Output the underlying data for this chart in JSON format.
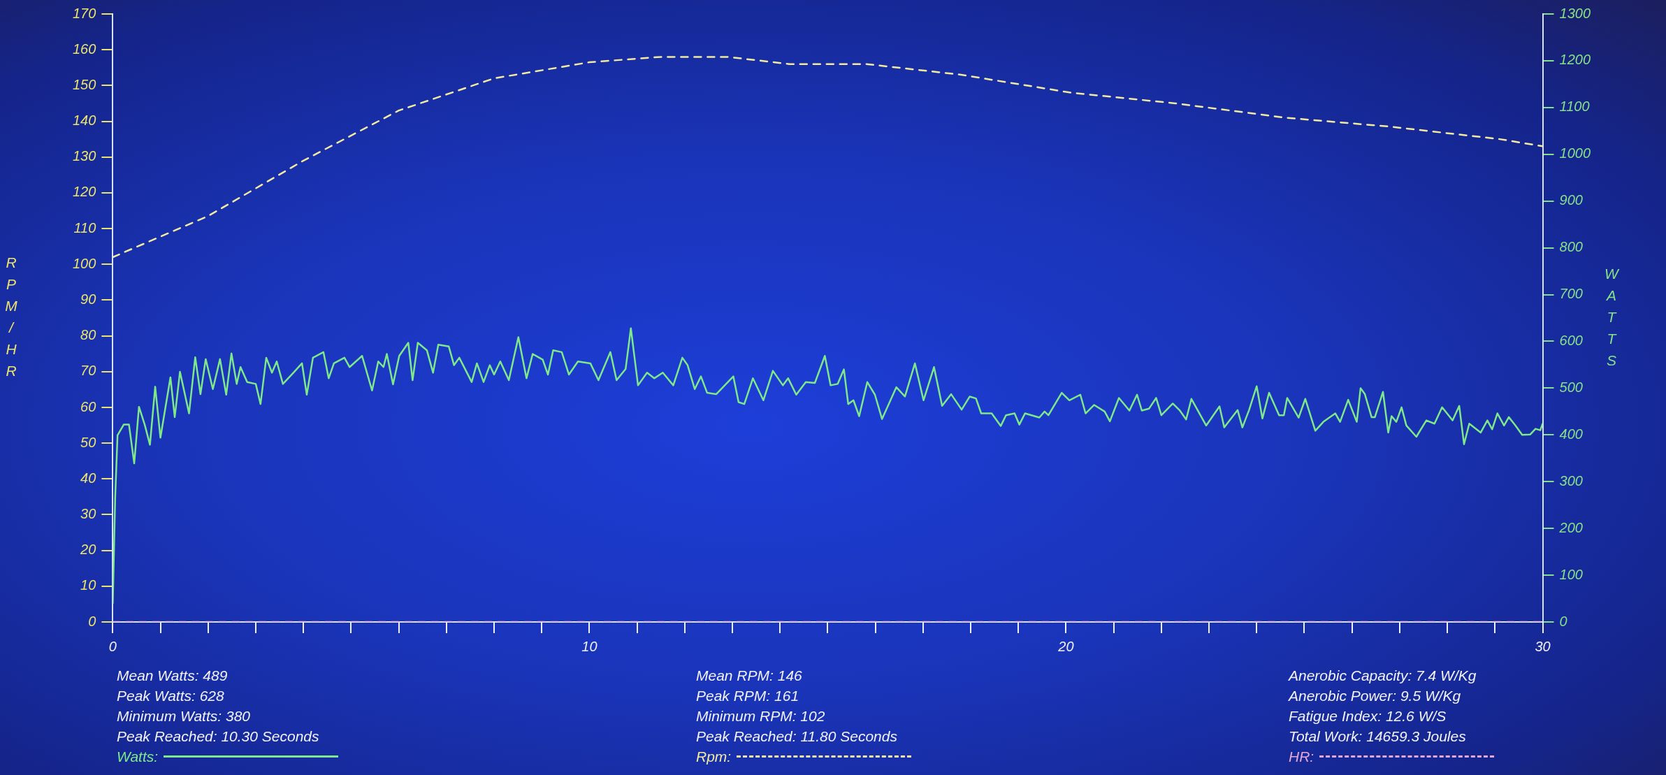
{
  "chart_data": {
    "type": "line",
    "ylabel": "RPM/HR",
    "y2label": "WATTS",
    "xlim": [
      0,
      30
    ],
    "xticks": [
      0,
      {
        "value": 1,
        "label": null
      },
      {
        "value": 2,
        "label": null
      },
      {
        "value": 3,
        "label": null
      },
      {
        "value": 4,
        "label": null
      },
      {
        "value": 5,
        "label": null
      },
      {
        "value": 6,
        "label": null
      },
      {
        "value": 7,
        "label": null
      },
      {
        "value": 8,
        "label": null
      },
      {
        "value": 9,
        "label": null
      },
      10,
      {
        "value": 11,
        "label": null
      },
      {
        "value": 12,
        "label": null
      },
      {
        "value": 13,
        "label": null
      },
      {
        "value": 14,
        "label": null
      },
      {
        "value": 15,
        "label": null
      },
      {
        "value": 16,
        "label": null
      },
      {
        "value": 17,
        "label": null
      },
      {
        "value": 18,
        "label": null
      },
      {
        "value": 19,
        "label": null
      },
      20,
      {
        "value": 21,
        "label": null
      },
      {
        "value": 22,
        "label": null
      },
      {
        "value": 23,
        "label": null
      },
      {
        "value": 24,
        "label": null
      },
      {
        "value": 25,
        "label": null
      },
      {
        "value": 26,
        "label": null
      },
      {
        "value": 27,
        "label": null
      },
      {
        "value": 28,
        "label": null
      },
      {
        "value": 29,
        "label": null
      },
      30
    ],
    "ylim": [
      0,
      170
    ],
    "yticks": [
      0,
      10,
      20,
      30,
      40,
      50,
      60,
      70,
      80,
      90,
      100,
      110,
      120,
      130,
      140,
      150,
      160,
      170
    ],
    "y2lim": [
      0,
      1300
    ],
    "y2ticks": [
      0,
      100,
      200,
      300,
      400,
      500,
      600,
      700,
      800,
      900,
      1000,
      1100,
      1200,
      1300
    ],
    "legend": "bottom",
    "marker": "none",
    "annotations": [
      "Mean Watts: 489",
      "Peak Watts: 628",
      "Minimum Watts: 380",
      "Peak Reached: 10.30 Seconds",
      "Mean RPM: 146",
      "Peak RPM: 161",
      "Minimum RPM: 102",
      "Peak Reached: 11.80 Seconds",
      "Anerobic Capacity: 7.4 W/Kg",
      "Anerobic Power: 9.5 W/Kg",
      "Fatigue Index: 12.6 W/S",
      "Total Work: 14659.3 Joules"
    ],
    "series": [
      {
        "name": "Watts:",
        "color": "#7ee88a",
        "axis": "y2",
        "line_style": "solid",
        "x": [
          0,
          0.05,
          0.1,
          0.23,
          0.34,
          0.45,
          0.55,
          0.67,
          0.78,
          0.89,
          1.0,
          1.21,
          1.3,
          1.41,
          1.6,
          1.73,
          1.84,
          1.95,
          2.1,
          2.25,
          2.38,
          2.49,
          2.6,
          2.68,
          2.82,
          3.0,
          3.1,
          3.22,
          3.34,
          3.44,
          3.57,
          3.79,
          3.97,
          4.07,
          4.2,
          4.42,
          4.53,
          4.64,
          4.86,
          4.97,
          5.23,
          5.44,
          5.57,
          5.68,
          5.75,
          5.88,
          6.01,
          6.2,
          6.29,
          6.4,
          6.59,
          6.72,
          6.83,
          7.05,
          7.16,
          7.27,
          7.53,
          7.64,
          7.78,
          7.91,
          8.0,
          8.13,
          8.31,
          8.51,
          8.68,
          8.81,
          9.02,
          9.13,
          9.24,
          9.42,
          9.57,
          9.76,
          10.02,
          10.19,
          10.44,
          10.57,
          10.76,
          10.87,
          11.02,
          11.21,
          11.36,
          11.54,
          11.76,
          11.95,
          12.06,
          12.21,
          12.34,
          12.47,
          12.66,
          13.02,
          13.13,
          13.25,
          13.43,
          13.65,
          13.85,
          14.06,
          14.17,
          14.34,
          14.54,
          14.73,
          14.94,
          15.06,
          15.21,
          15.34,
          15.43,
          15.54,
          15.66,
          15.83,
          15.99,
          16.14,
          16.44,
          16.62,
          16.83,
          17.01,
          17.23,
          17.4,
          17.59,
          17.81,
          17.98,
          18.11,
          18.22,
          18.44,
          18.63,
          18.74,
          18.92,
          19.02,
          19.14,
          19.44,
          19.55,
          19.63,
          19.91,
          20.07,
          20.3,
          20.41,
          20.59,
          20.81,
          20.92,
          21.11,
          21.33,
          21.49,
          21.59,
          21.74,
          21.89,
          22.0,
          22.24,
          22.38,
          22.52,
          22.63,
          22.94,
          23.22,
          23.32,
          23.6,
          23.7,
          23.84,
          24.0,
          24.12,
          24.26,
          24.47,
          24.57,
          24.64,
          24.88,
          25.02,
          25.23,
          25.4,
          25.65,
          25.75,
          25.92,
          26.1,
          26.18,
          26.27,
          26.41,
          26.48,
          26.65,
          26.76,
          26.83,
          26.93,
          27.04,
          27.14,
          27.35,
          27.56,
          27.73,
          27.89,
          28.11,
          28.25,
          28.35,
          28.46,
          28.7,
          28.84,
          28.94,
          29.05,
          29.19,
          29.29,
          29.43,
          29.57,
          29.74,
          29.85,
          29.95,
          30.0
        ],
        "values": [
          40,
          264,
          399,
          422,
          422,
          339,
          460,
          422,
          379,
          503,
          394,
          523,
          438,
          535,
          446,
          566,
          487,
          562,
          498,
          562,
          486,
          574,
          509,
          545,
          513,
          509,
          466,
          565,
          533,
          557,
          509,
          533,
          553,
          486,
          565,
          577,
          521,
          553,
          565,
          545,
          569,
          495,
          557,
          545,
          573,
          508,
          569,
          597,
          517,
          597,
          581,
          533,
          593,
          589,
          549,
          565,
          513,
          553,
          513,
          549,
          529,
          557,
          517,
          609,
          521,
          573,
          561,
          529,
          581,
          577,
          529,
          557,
          553,
          517,
          577,
          517,
          541,
          628,
          506,
          533,
          521,
          533,
          506,
          565,
          549,
          498,
          525,
          490,
          487,
          525,
          470,
          466,
          521,
          474,
          537,
          506,
          521,
          486,
          513,
          511,
          569,
          506,
          509,
          540,
          466,
          474,
          440,
          513,
          486,
          434,
          502,
          482,
          553,
          474,
          545,
          462,
          487,
          454,
          482,
          478,
          446,
          446,
          419,
          442,
          446,
          422,
          446,
          437,
          450,
          442,
          490,
          474,
          486,
          446,
          464,
          450,
          429,
          479,
          452,
          486,
          452,
          456,
          479,
          442,
          467,
          453,
          433,
          477,
          420,
          461,
          416,
          453,
          416,
          453,
          504,
          435,
          490,
          442,
          442,
          479,
          437,
          477,
          409,
          428,
          446,
          428,
          475,
          428,
          500,
          487,
          438,
          438,
          492,
          405,
          440,
          428,
          459,
          420,
          396,
          431,
          424,
          459,
          431,
          462,
          380,
          424,
          405,
          431,
          412,
          446,
          420,
          438,
          420,
          400,
          401,
          413,
          410,
          424
        ]
      },
      {
        "name": "Rpm:",
        "color": "#f2eaa0",
        "axis": "y",
        "line_style": "dashed",
        "x": [
          0,
          2,
          4,
          6,
          8,
          10,
          11.5,
          12.9,
          14.2,
          15.8,
          17.8,
          20.1,
          22.3,
          24.6,
          26.8,
          29.1,
          30
        ],
        "values": [
          102,
          113.5,
          129,
          143,
          152,
          156.5,
          158,
          158,
          156,
          156,
          153,
          148,
          145,
          141,
          138.5,
          135,
          133
        ]
      },
      {
        "name": "HR:",
        "color": "#e6a6d6",
        "axis": "y",
        "line_style": "dashed",
        "x": [
          0,
          30
        ],
        "values": [
          0,
          0
        ]
      }
    ]
  }
}
